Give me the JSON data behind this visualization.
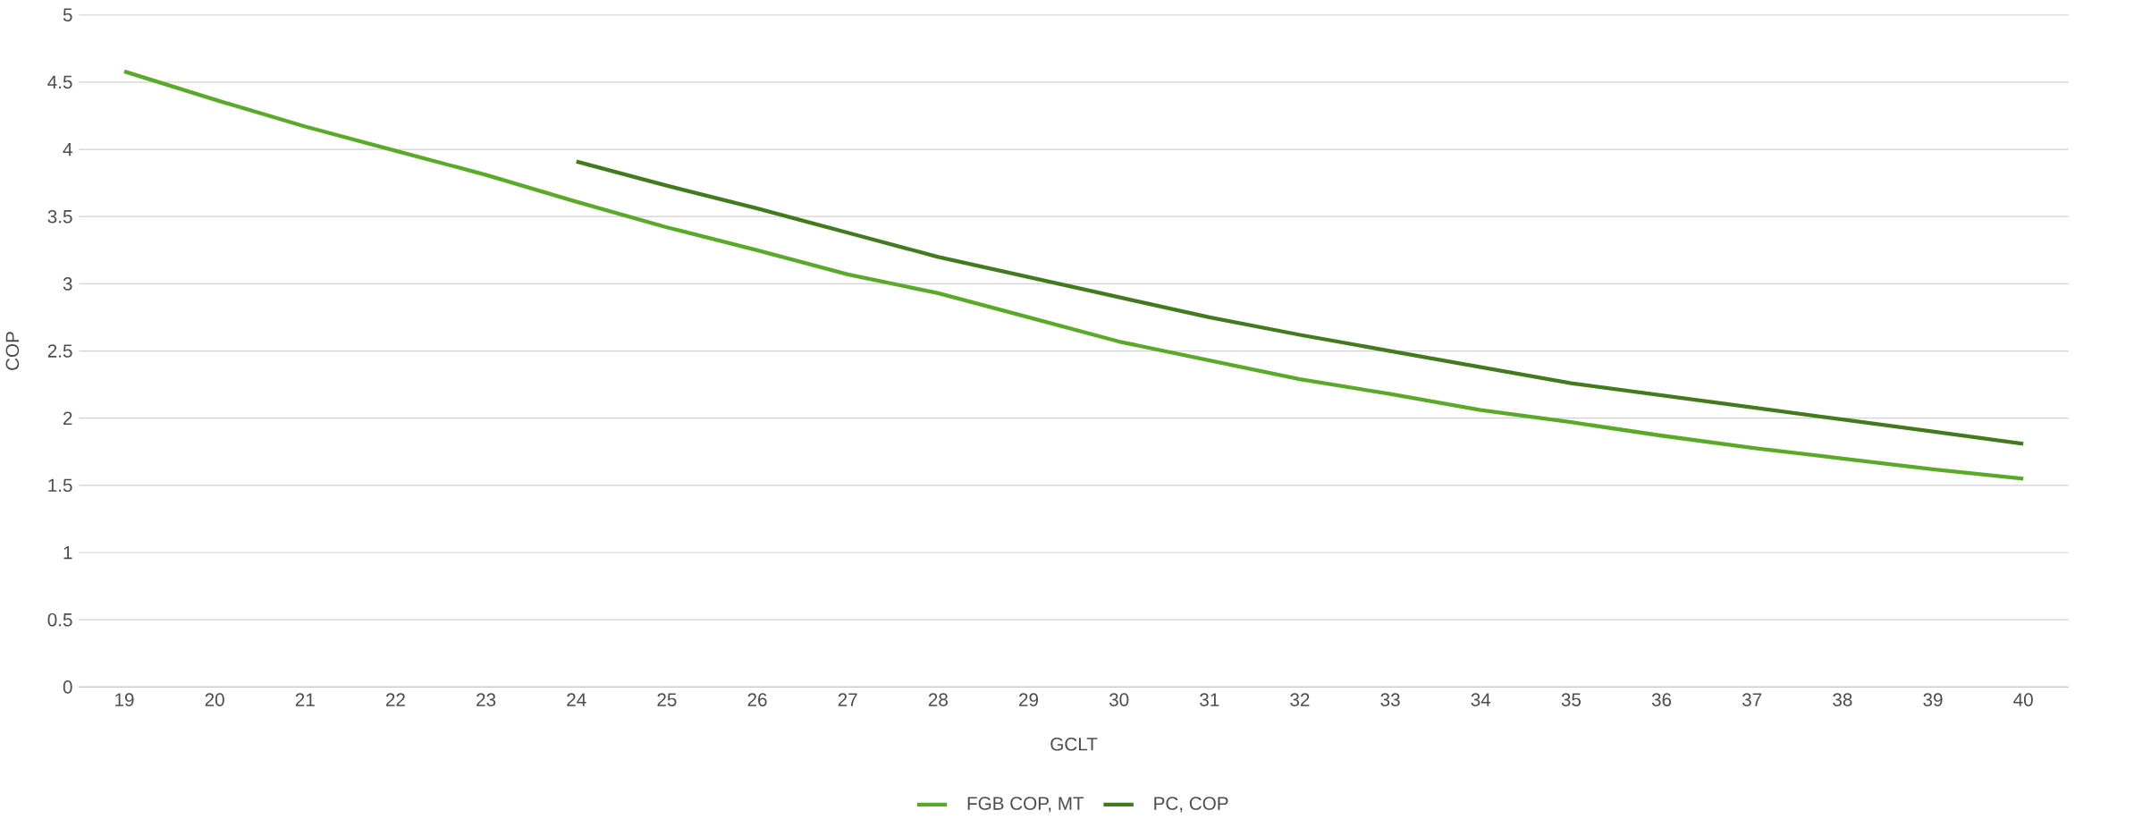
{
  "chart_data": {
    "type": "line",
    "xlabel": "GCLT",
    "ylabel": "COP",
    "categories": [
      "19",
      "20",
      "21",
      "22",
      "23",
      "24",
      "25",
      "26",
      "27",
      "28",
      "29",
      "30",
      "31",
      "32",
      "33",
      "34",
      "35",
      "36",
      "37",
      "38",
      "39",
      "40"
    ],
    "series": [
      {
        "name": "FGB COP, MT",
        "color": "#5aaa2a",
        "values": [
          4.58,
          4.37,
          4.17,
          3.99,
          3.81,
          3.61,
          3.42,
          3.25,
          3.07,
          2.93,
          2.75,
          2.57,
          2.43,
          2.29,
          2.18,
          2.06,
          1.97,
          1.87,
          1.78,
          1.7,
          1.62,
          1.55
        ]
      },
      {
        "name": "PC, COP",
        "color": "#437a1e",
        "values": [
          null,
          null,
          null,
          null,
          null,
          3.91,
          3.73,
          3.56,
          3.38,
          3.2,
          3.05,
          2.9,
          2.75,
          2.62,
          2.5,
          2.38,
          2.26,
          2.17,
          2.08,
          1.99,
          1.9,
          1.81
        ]
      }
    ],
    "ylim": [
      0,
      5
    ],
    "yticks": [
      0,
      0.5,
      1,
      1.5,
      2,
      2.5,
      3,
      3.5,
      4,
      4.5,
      5
    ],
    "grid": "y",
    "legend": "bottom",
    "marker": "none",
    "line_style": "solid"
  }
}
